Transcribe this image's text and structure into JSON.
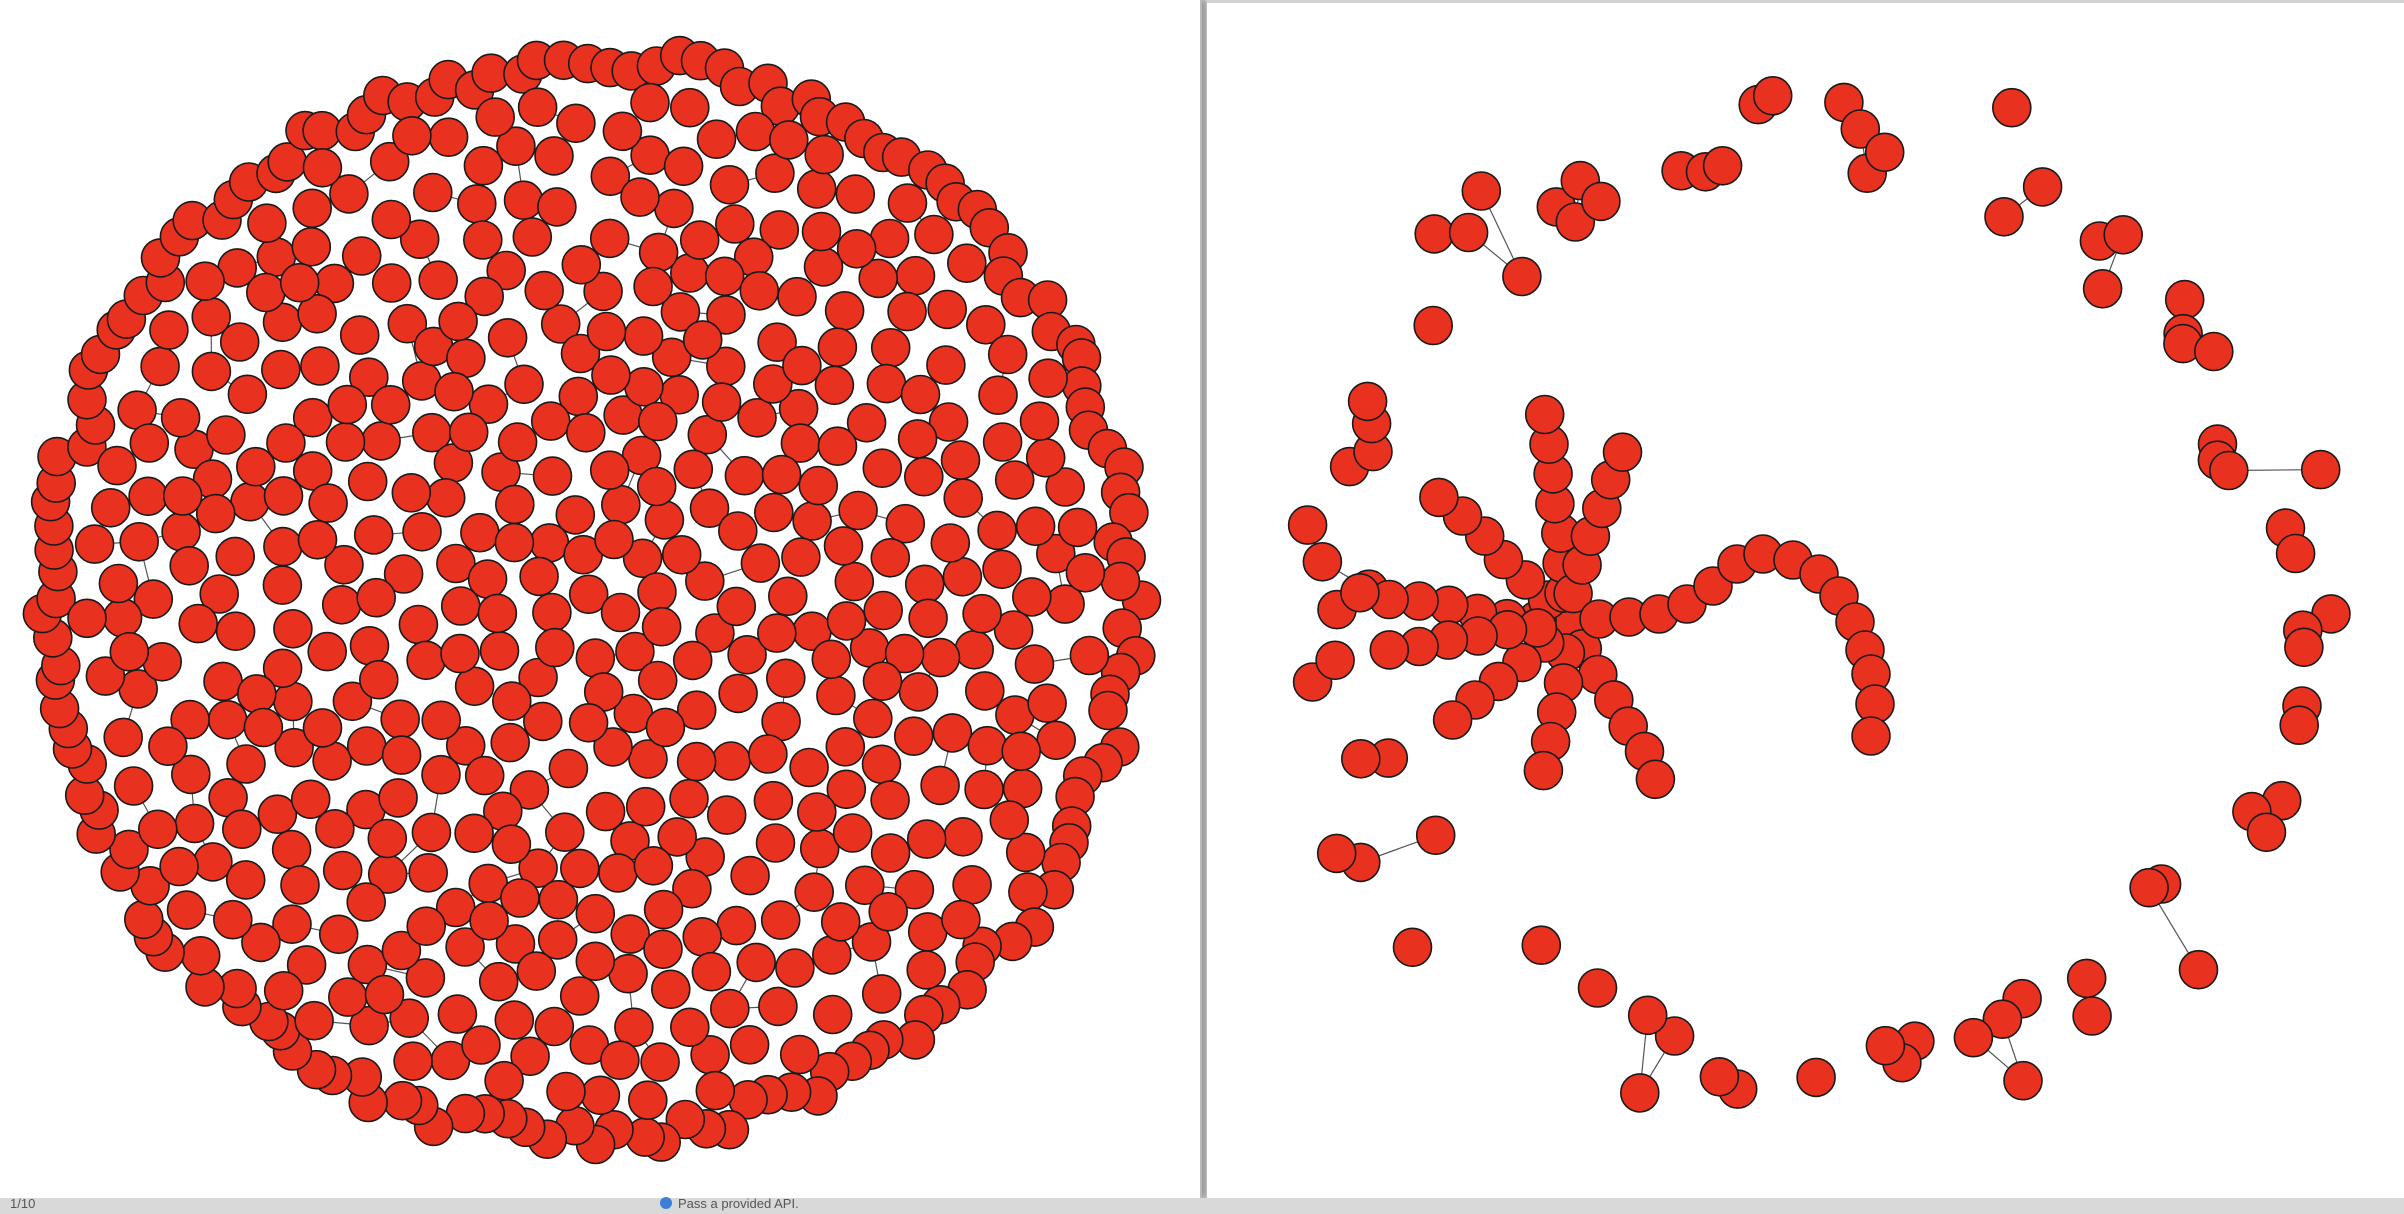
{
  "footer": {
    "page_indicator": "1/10",
    "status_text": "Pass a provided API."
  },
  "colors": {
    "node_fill": "#e8321f",
    "node_stroke": "#1a1a1a",
    "edge": "#555555",
    "background": "#ffffff"
  },
  "left_graph": {
    "layout": "circular cloud of disconnected small components",
    "node_count": 620
  },
  "right_graph": {
    "layout": "outer ring of small components around one central branching component",
    "node_count": 330
  }
}
